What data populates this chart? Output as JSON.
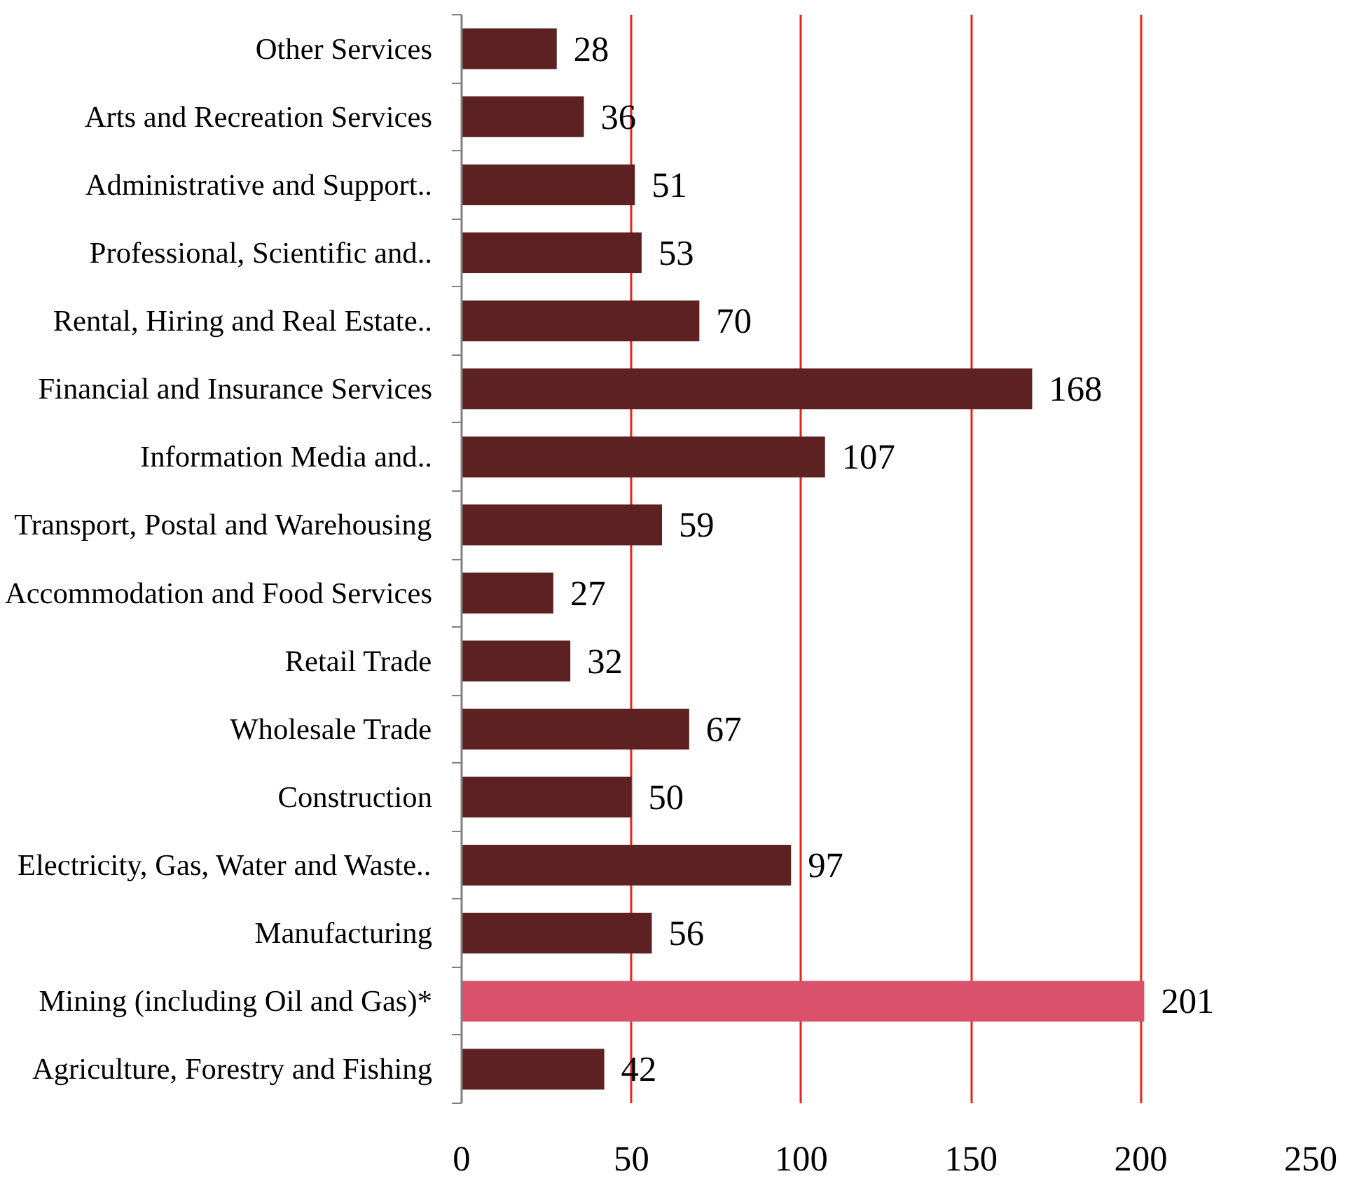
{
  "chart_data": {
    "type": "bar",
    "orientation": "horizontal",
    "categories": [
      "Other Services",
      "Arts and Recreation Services",
      "Administrative and Support..",
      "Professional, Scientific and..",
      "Rental, Hiring and Real Estate..",
      "Financial and Insurance Services",
      "Information Media and..",
      "Transport, Postal and Warehousing",
      "Accommodation and Food Services",
      "Retail Trade",
      "Wholesale Trade",
      "Construction",
      "Electricity, Gas, Water and Waste..",
      "Manufacturing",
      "Mining (including Oil and Gas)*",
      "Agriculture, Forestry and Fishing"
    ],
    "values": [
      28,
      36,
      51,
      53,
      70,
      168,
      107,
      59,
      27,
      32,
      67,
      50,
      97,
      56,
      201,
      42
    ],
    "colors": [
      "#5c2120",
      "#5c2120",
      "#5c2120",
      "#5c2120",
      "#5c2120",
      "#5c2120",
      "#5c2120",
      "#5c2120",
      "#5c2120",
      "#5c2120",
      "#5c2120",
      "#5c2120",
      "#5c2120",
      "#5c2120",
      "#d9516a",
      "#5c2120"
    ],
    "xlim": [
      0,
      250
    ],
    "xticks": [
      0,
      50,
      100,
      150,
      200,
      250
    ],
    "grid": "x",
    "data_labels": true
  }
}
